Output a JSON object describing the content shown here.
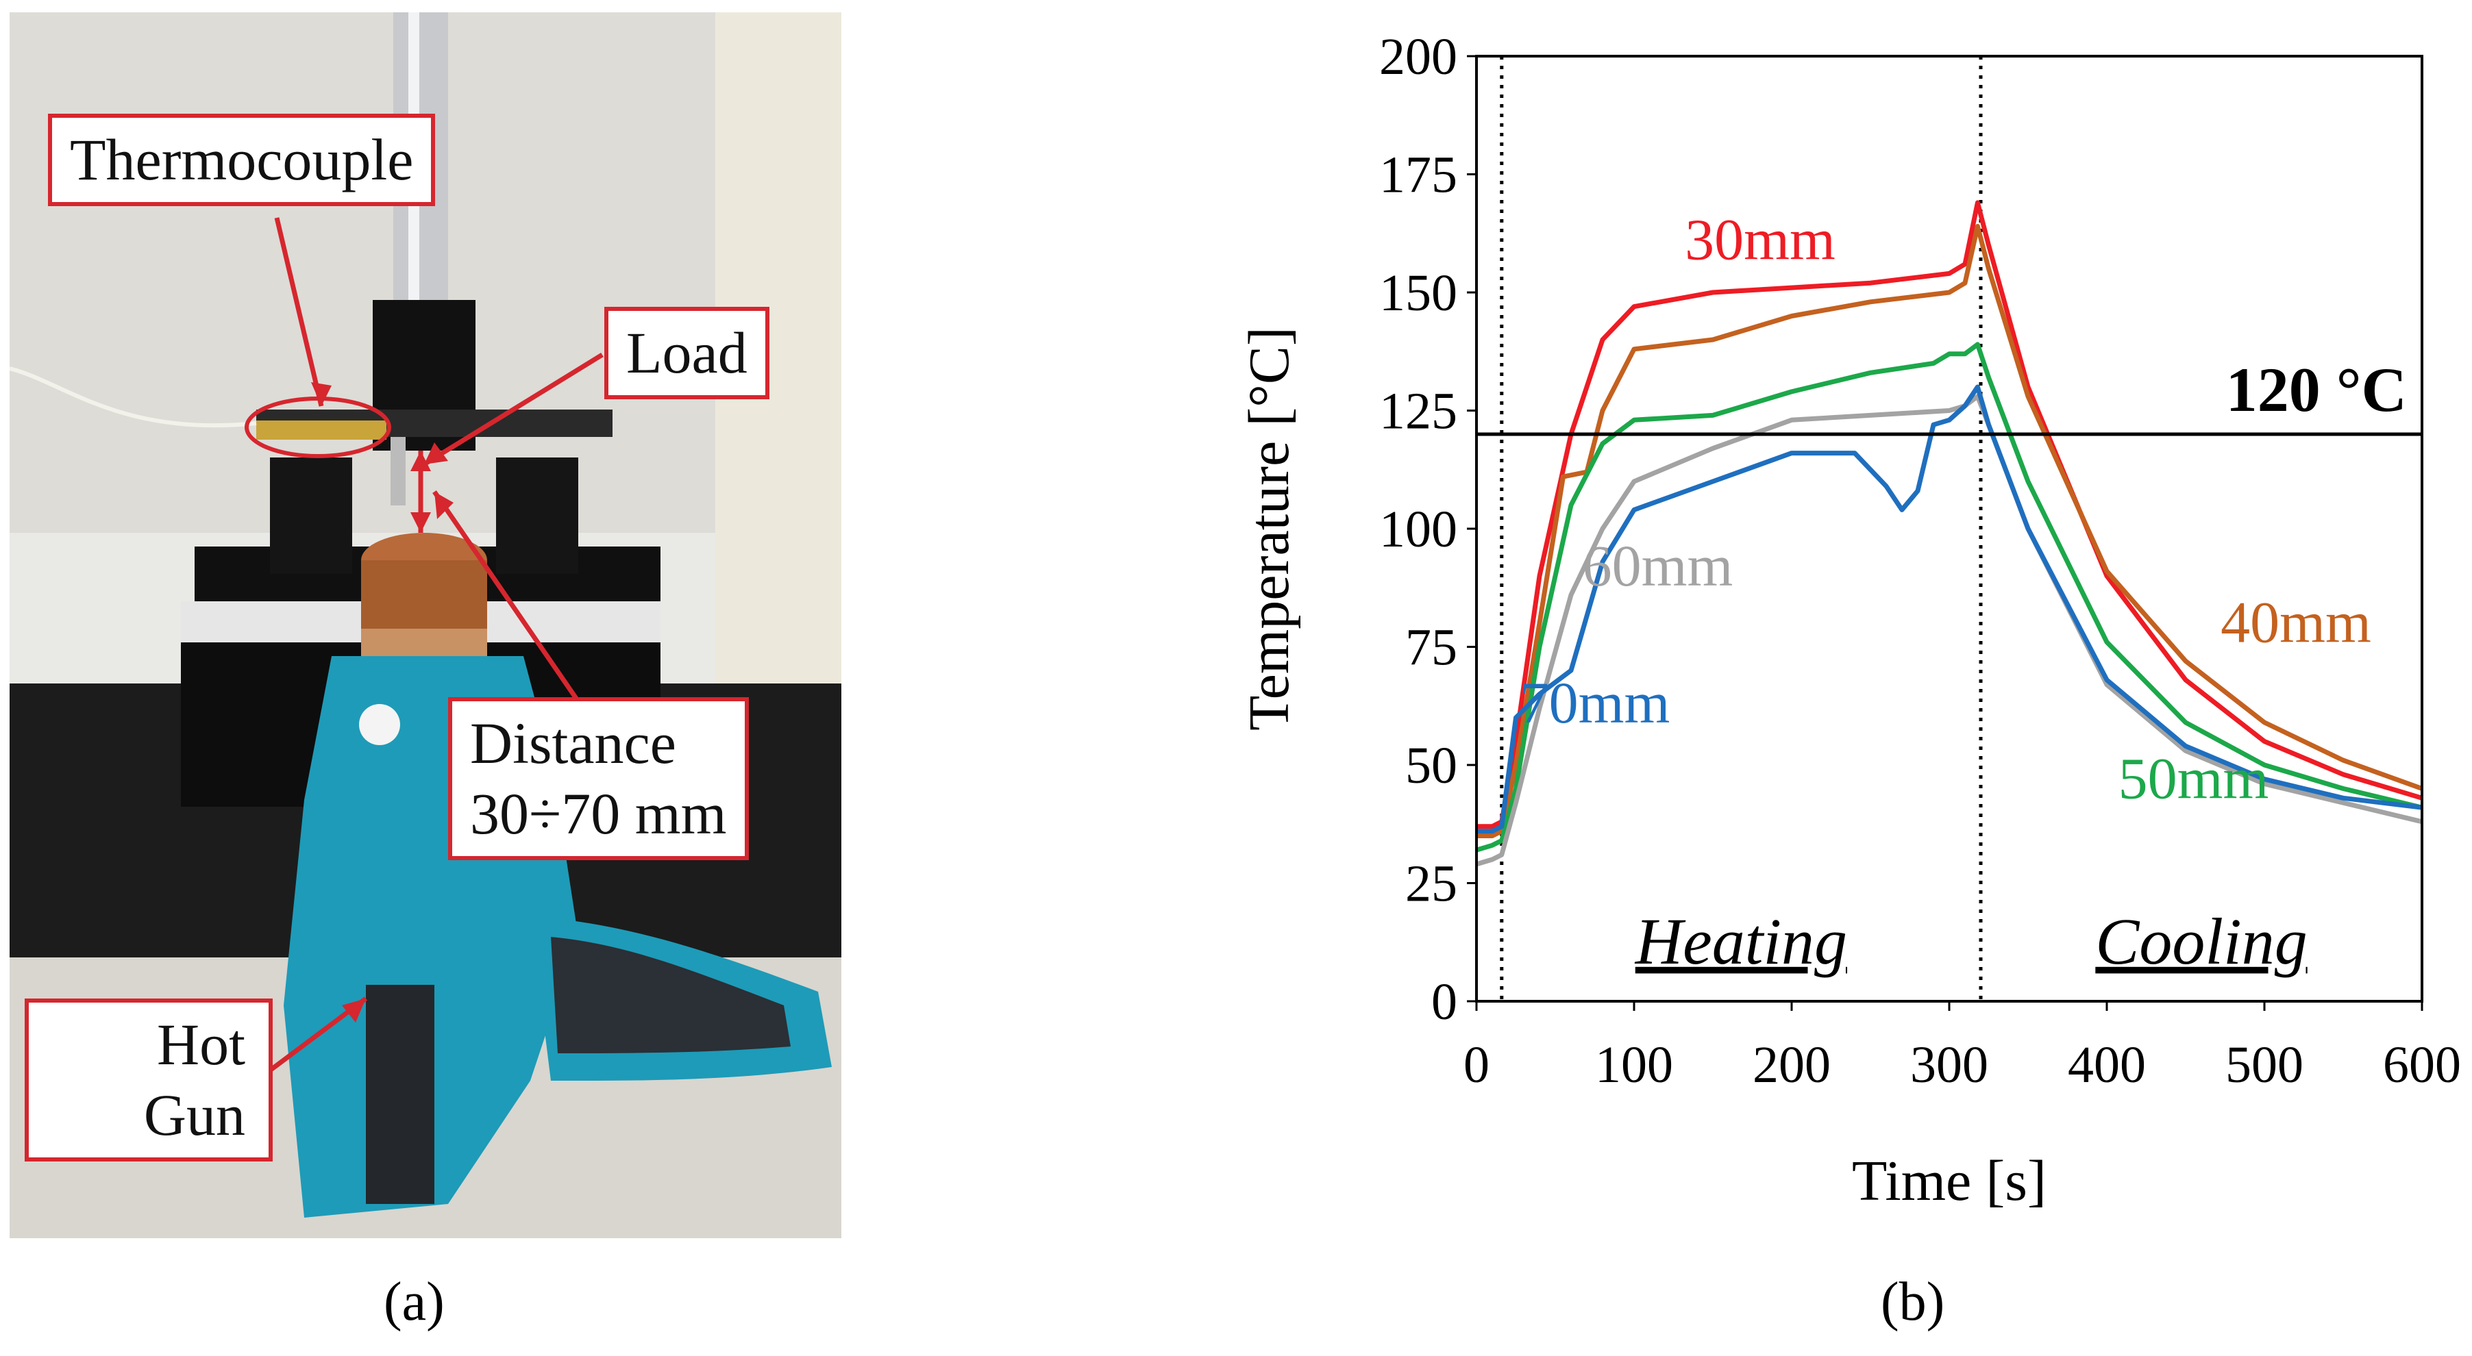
{
  "panels": {
    "a_label": "(a)",
    "b_label": "(b)"
  },
  "photo": {
    "callouts": {
      "thermocouple": "Thermocouple",
      "load": "Load",
      "distance_line1": "Distance",
      "distance_line2": "30÷70 mm",
      "hot_line1": "Hot",
      "hot_line2": "Gun"
    }
  },
  "colors": {
    "s30": "#ee1c24",
    "s40": "#c4611f",
    "s50": "#1ca84a",
    "s60": "#a3a3a3",
    "s70": "#1f6fbf",
    "callout_border": "#d6262e"
  },
  "chart_data": {
    "type": "line",
    "title": "",
    "xlabel": "Time [s]",
    "ylabel": "Temperature [°C]",
    "xlim": [
      0,
      600
    ],
    "ylim": [
      0,
      200
    ],
    "xticks": [
      "0",
      "100",
      "200",
      "300",
      "400",
      "500",
      "600"
    ],
    "yticks": [
      "0",
      "25",
      "50",
      "75",
      "100",
      "125",
      "150",
      "175",
      "200"
    ],
    "grid": false,
    "threshold": {
      "value": 120,
      "label": "120 °C"
    },
    "vertical_lines": [
      16,
      320
    ],
    "phase_labels": {
      "heating": "Heating",
      "cooling": "Cooling"
    },
    "series": [
      {
        "name": "30mm",
        "color": "#ee1c24",
        "x": [
          0,
          10,
          16,
          25,
          40,
          60,
          80,
          100,
          150,
          200,
          250,
          300,
          310,
          318,
          325,
          350,
          400,
          450,
          500,
          550,
          600
        ],
        "y": [
          37,
          37,
          38,
          55,
          90,
          120,
          140,
          147,
          150,
          151,
          152,
          154,
          156,
          169,
          160,
          130,
          90,
          68,
          55,
          48,
          43
        ]
      },
      {
        "name": "40mm",
        "color": "#c4611f",
        "x": [
          0,
          10,
          16,
          25,
          40,
          55,
          70,
          80,
          100,
          150,
          200,
          250,
          300,
          310,
          318,
          325,
          350,
          400,
          450,
          500,
          550,
          600
        ],
        "y": [
          35,
          35,
          36,
          50,
          80,
          111,
          112,
          125,
          138,
          140,
          145,
          148,
          150,
          152,
          164,
          155,
          128,
          91,
          72,
          59,
          51,
          45
        ]
      },
      {
        "name": "50mm",
        "color": "#1ca84a",
        "x": [
          0,
          10,
          16,
          25,
          40,
          60,
          80,
          100,
          150,
          200,
          250,
          290,
          300,
          310,
          318,
          325,
          350,
          400,
          450,
          500,
          550,
          600
        ],
        "y": [
          32,
          33,
          34,
          45,
          75,
          105,
          118,
          123,
          124,
          129,
          133,
          135,
          137,
          137,
          139,
          132,
          110,
          76,
          59,
          50,
          45,
          41
        ]
      },
      {
        "name": "60mm",
        "color": "#a3a3a3",
        "x": [
          0,
          10,
          16,
          25,
          40,
          60,
          80,
          100,
          150,
          200,
          250,
          300,
          310,
          318,
          325,
          350,
          400,
          450,
          500,
          550,
          600
        ],
        "y": [
          29,
          30,
          31,
          42,
          62,
          86,
          100,
          110,
          117,
          123,
          124,
          125,
          126,
          128,
          122,
          100,
          67,
          53,
          46,
          42,
          38
        ]
      },
      {
        "name": "70mm",
        "color": "#1f6fbf",
        "x": [
          0,
          10,
          16,
          25,
          40,
          60,
          80,
          100,
          150,
          200,
          240,
          260,
          270,
          280,
          290,
          300,
          310,
          318,
          325,
          350,
          400,
          450,
          500,
          550,
          600
        ],
        "y": [
          36,
          36,
          37,
          60,
          65,
          70,
          93,
          104,
          110,
          116,
          116,
          109,
          104,
          108,
          122,
          123,
          126,
          130,
          122,
          100,
          68,
          54,
          47,
          43,
          41
        ]
      }
    ]
  }
}
